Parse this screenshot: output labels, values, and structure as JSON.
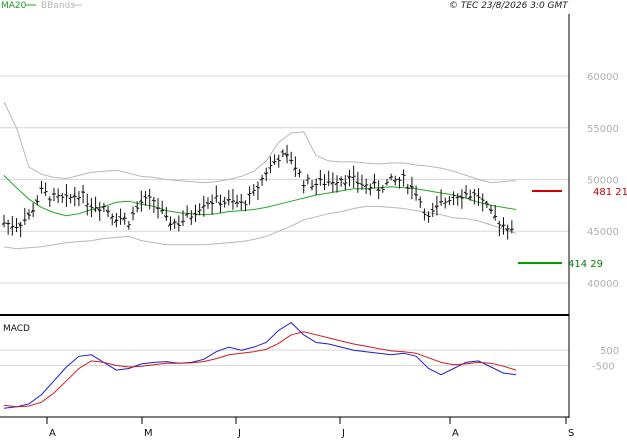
{
  "header": {
    "legend_ma": "MA20",
    "legend_bbands": "BBands",
    "copyright": "© TEC 23/8/2026 3:0 GMT"
  },
  "levels": {
    "resistance_label": "481 21",
    "support_label": "414 29",
    "resistance_color": "#cc0000",
    "support_color": "#00a000"
  },
  "chart_data": [
    {
      "type": "bar",
      "subtype": "ohlc-price",
      "y_ticks": [
        40000,
        45000,
        50000,
        55000,
        60000
      ],
      "y_tick_labels": [
        "40000",
        "45000",
        "50000",
        "55000",
        "60000"
      ],
      "ylim": [
        37000,
        66000
      ],
      "grid": true,
      "months": [
        "A",
        "M",
        "J",
        "J",
        "A",
        "S"
      ],
      "colors": {
        "bars": "#111111",
        "ma20": "#22a822",
        "bbands": "#b8b8b8"
      },
      "series": [
        {
          "name": "MA20",
          "values": [
            50400,
            49200,
            48100,
            47300,
            46800,
            46500,
            46700,
            47100,
            47400,
            47800,
            47900,
            47600,
            47400,
            47000,
            46800,
            46700,
            46600,
            46700,
            46900,
            47000,
            47100,
            47300,
            47600,
            47900,
            48200,
            48500,
            48700,
            48900,
            49100,
            49100,
            49200,
            49300,
            49200,
            49100,
            48900,
            48700,
            48500,
            48200,
            47800,
            47500,
            47300,
            47100
          ]
        },
        {
          "name": "BBands upper",
          "values": [
            57500,
            55000,
            51200,
            50500,
            50200,
            50100,
            50400,
            50700,
            50800,
            50900,
            50600,
            50300,
            50200,
            50000,
            49900,
            49800,
            49700,
            49800,
            50000,
            50300,
            50800,
            51800,
            53600,
            54500,
            54600,
            52300,
            51800,
            51700,
            51700,
            51600,
            51500,
            51600,
            51600,
            51400,
            51300,
            51100,
            50800,
            50400,
            50000,
            49700,
            49800,
            49900
          ]
        },
        {
          "name": "BBands lower",
          "values": [
            43500,
            43300,
            43400,
            43500,
            43700,
            43900,
            44000,
            44100,
            44300,
            44400,
            44500,
            44100,
            43900,
            43700,
            43700,
            43700,
            43700,
            43800,
            43900,
            44000,
            44200,
            44500,
            45000,
            45500,
            46100,
            46400,
            46700,
            46900,
            47200,
            47400,
            47400,
            47300,
            47200,
            47000,
            46800,
            46600,
            46300,
            46200,
            46000,
            45600,
            45200,
            44800
          ]
        },
        {
          "name": "OHLC",
          "values": [
            45800,
            45600,
            46400,
            48800,
            48200,
            48000,
            48700,
            47600,
            47400,
            46400,
            46000,
            47800,
            48000,
            46000,
            45800,
            46600,
            47800,
            48000,
            47800,
            47600,
            48600,
            50800,
            52200,
            52000,
            49800,
            49600,
            49800,
            50200,
            49900,
            49400,
            49200,
            49800,
            50000,
            48800,
            46200,
            47600,
            48600,
            48600,
            48400,
            46600,
            45600,
            45400
          ]
        }
      ]
    },
    {
      "type": "line",
      "title": "MACD",
      "y_ticks": [
        -500,
        500
      ],
      "y_tick_labels": [
        "-500",
        "500"
      ],
      "ylim": [
        -3800,
        2600
      ],
      "grid": true,
      "colors": {
        "macd": "#1e1ecc",
        "signal": "#cc1e1e"
      },
      "series": [
        {
          "name": "MACD",
          "values": [
            -3300,
            -3200,
            -3000,
            -2400,
            -1500,
            -600,
            100,
            200,
            -300,
            -800,
            -700,
            -400,
            -300,
            -250,
            -350,
            -300,
            -100,
            400,
            700,
            500,
            700,
            1000,
            1800,
            2300,
            1500,
            1000,
            900,
            700,
            500,
            400,
            300,
            200,
            300,
            100,
            -700,
            -1100,
            -700,
            -300,
            -200,
            -600,
            -1000,
            -1100
          ]
        },
        {
          "name": "Signal",
          "values": [
            -3100,
            -3200,
            -3150,
            -2900,
            -2300,
            -1500,
            -700,
            -200,
            -300,
            -500,
            -600,
            -550,
            -450,
            -350,
            -350,
            -330,
            -250,
            -50,
            200,
            300,
            400,
            550,
            950,
            1500,
            1700,
            1500,
            1300,
            1100,
            900,
            750,
            600,
            450,
            400,
            300,
            0,
            -300,
            -450,
            -400,
            -300,
            -350,
            -550,
            -800
          ]
        }
      ]
    }
  ]
}
